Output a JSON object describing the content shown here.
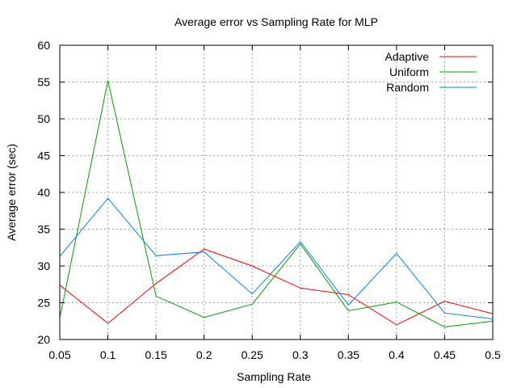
{
  "chart_data": {
    "type": "line",
    "title": "Average error vs Sampling Rate for MLP",
    "xlabel": "Sampling Rate",
    "ylabel": "Average error (sec)",
    "x": [
      0.05,
      0.1,
      0.15,
      0.2,
      0.25,
      0.3,
      0.35,
      0.4,
      0.45,
      0.5
    ],
    "x_ticks": [
      "0.05",
      "0.1",
      "0.15",
      "0.2",
      "0.25",
      "0.3",
      "0.35",
      "0.4",
      "0.45",
      "0.5"
    ],
    "y_ticks": [
      "20",
      "25",
      "30",
      "35",
      "40",
      "45",
      "50",
      "55",
      "60"
    ],
    "xlim": [
      0.05,
      0.5
    ],
    "ylim": [
      20,
      60
    ],
    "grid": true,
    "legend_position": "top-right",
    "series": [
      {
        "name": "Adaptive",
        "color": "#ff0000",
        "values": [
          27.4,
          22.2,
          27.6,
          32.3,
          30.0,
          27.0,
          26.1,
          22.0,
          25.2,
          23.5
        ]
      },
      {
        "name": "Uniform",
        "color": "#00a000",
        "values": [
          22.9,
          55.2,
          25.9,
          23.0,
          24.8,
          33.0,
          23.9,
          25.1,
          21.7,
          22.5
        ]
      },
      {
        "name": "Random",
        "color": "#0080ff",
        "values": [
          31.3,
          39.2,
          31.4,
          31.9,
          26.2,
          33.3,
          24.7,
          31.7,
          23.6,
          22.8
        ]
      }
    ]
  }
}
